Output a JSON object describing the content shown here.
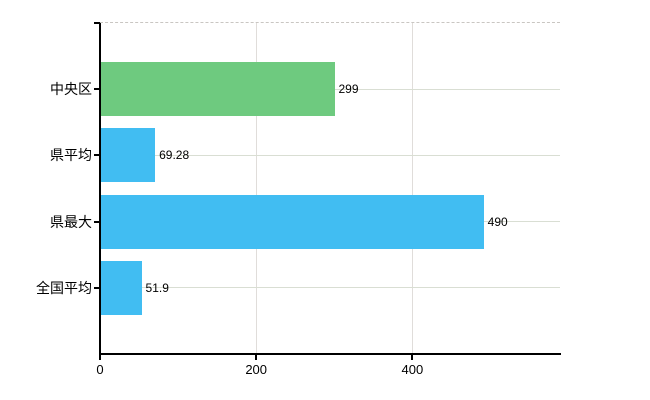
{
  "chart_data": {
    "type": "bar",
    "orientation": "horizontal",
    "title": "",
    "xlabel": "",
    "ylabel": "",
    "categories": [
      "中央区",
      "県平均",
      "県最大",
      "全国平均"
    ],
    "values": [
      299,
      69.28,
      490,
      51.9
    ],
    "value_labels": [
      "299",
      "69.28",
      "490",
      "51.9"
    ],
    "x_ticks": [
      0,
      200,
      400
    ],
    "x_tick_labels": [
      "0",
      "200",
      "400"
    ],
    "xlim": [
      0,
      589
    ],
    "grid": true,
    "legend": false,
    "series_colors": [
      "#6eca7f",
      "#41bdf2",
      "#41bdf2",
      "#41bdf2"
    ]
  },
  "colors": {
    "background": "#ffffff",
    "bar_green": "#6eca7f",
    "bar_blue": "#41bdf2",
    "axis": "#000000",
    "text": "#000000",
    "gridline_horizontal": "#d9ded3",
    "gridline_vertical": "#e0ddda",
    "top_border_dashed": "#c9c6c2"
  }
}
